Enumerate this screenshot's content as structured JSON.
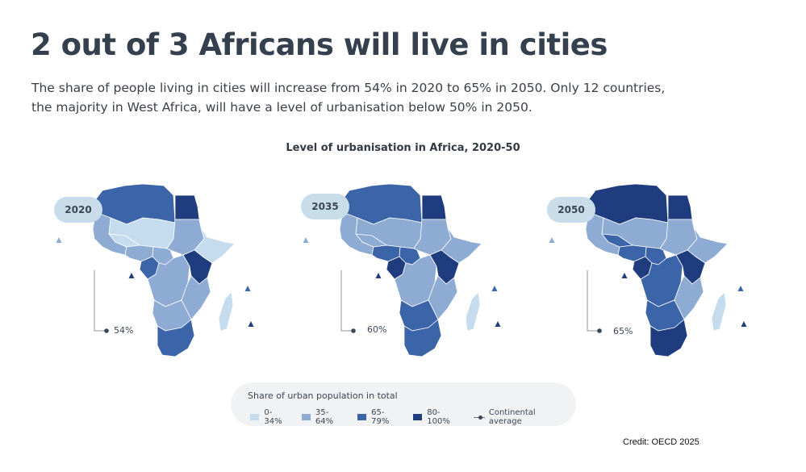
{
  "header": {
    "title": "2 out of 3 Africans will live in cities",
    "subtitle_line1": "The share of people living in cities will increase from 54% in 2020 to 65% in 2050. Only 12 countries,",
    "subtitle_line2": "the majority in West Africa, will have a level of urbanisation below 50% in 2050."
  },
  "chart_title": "Level of urbanisation in Africa, 2020-50",
  "colors": {
    "c0_34": "#c5dcef",
    "c35_64": "#8eabd4",
    "c65_79": "#3c64a8",
    "c80_100": "#1f3c7e",
    "border": "#ffffff"
  },
  "maps": [
    {
      "year": "2020",
      "average": "54%",
      "regions": {
        "maghreb": "c65_79",
        "egypt": "c80_100",
        "sahel": "c0_34",
        "sudan": "c35_64",
        "horn": "c0_34",
        "westcoast": "c35_64",
        "westpocket": "c0_34",
        "nigeria": "c35_64",
        "cameroon": "c65_79",
        "central": "c35_64",
        "congo": "c35_64",
        "kenya": "c80_100",
        "east": "c35_64",
        "southwest": "c35_64",
        "south": "c65_79",
        "madagascar": "c0_34"
      }
    },
    {
      "year": "2035",
      "average": "60%",
      "regions": {
        "maghreb": "c65_79",
        "egypt": "c80_100",
        "sahel": "c35_64",
        "sudan": "c35_64",
        "horn": "c35_64",
        "westcoast": "c35_64",
        "westpocket": "c35_64",
        "nigeria": "c65_79",
        "cameroon": "c80_100",
        "central": "c65_79",
        "congo": "c35_64",
        "kenya": "c80_100",
        "east": "c35_64",
        "southwest": "c65_79",
        "south": "c65_79",
        "madagascar": "c0_34"
      }
    },
    {
      "year": "2050",
      "average": "65%",
      "regions": {
        "maghreb": "c80_100",
        "egypt": "c80_100",
        "sahel": "c35_64",
        "sudan": "c35_64",
        "horn": "c35_64",
        "westcoast": "c35_64",
        "westpocket": "c65_79",
        "nigeria": "c65_79",
        "cameroon": "c80_100",
        "central": "c65_79",
        "congo": "c65_79",
        "kenya": "c80_100",
        "east": "c35_64",
        "southwest": "c65_79",
        "south": "c80_100",
        "madagascar": "c0_34"
      }
    }
  ],
  "legend": {
    "title": "Share of urban population in total",
    "items": [
      {
        "label": "0-34%",
        "color": "#c5dcef"
      },
      {
        "label": "35-64%",
        "color": "#8eabd4"
      },
      {
        "label": "65-79%",
        "color": "#3c64a8"
      },
      {
        "label": "80-100%",
        "color": "#1f3c7e"
      }
    ],
    "average_label": "Continental average"
  },
  "credit": "Credit: OECD 2025"
}
